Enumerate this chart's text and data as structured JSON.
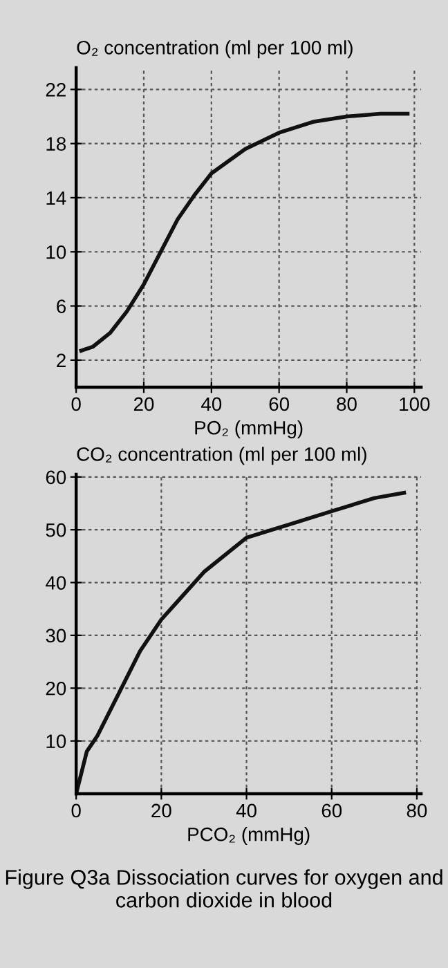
{
  "chart_data": [
    {
      "type": "line",
      "xlabel": "PO₂ (mmHg)",
      "ylabel": "O₂ concentration (ml per 100 ml)",
      "x": [
        1.5,
        5,
        10,
        15,
        20,
        25,
        30,
        35,
        40,
        50,
        60,
        70,
        80,
        90,
        98
      ],
      "series": [
        {
          "color": "#111111",
          "values": [
            2.7,
            3.0,
            4.0,
            5.6,
            7.6,
            10,
            12.4,
            14.2,
            15.8,
            17.6,
            18.8,
            19.6,
            20.0,
            20.2,
            20.2
          ]
        }
      ],
      "xlim": [
        0,
        102
      ],
      "xticks": [
        0,
        20,
        40,
        60,
        80,
        100
      ],
      "ylim": [
        0,
        23.6
      ],
      "yticks": [
        2,
        6,
        10,
        14,
        18,
        22
      ],
      "grid": true,
      "marker": "none",
      "line_style": "solid",
      "annotations": [
        "Figure Q3a Dissociation curves for oxygen and carbon dioxide in blood"
      ]
    },
    {
      "type": "line",
      "xlabel": "PCO₂ (mmHg)",
      "ylabel": "CO₂ concentration (ml per 100 ml)",
      "x": [
        0,
        2.5,
        5,
        10,
        15,
        20,
        30,
        40,
        50,
        60,
        70,
        77
      ],
      "series": [
        {
          "color": "#111111",
          "values": [
            0,
            8,
            11,
            19,
            27,
            33,
            42,
            48.5,
            51,
            53.5,
            56,
            57
          ]
        }
      ],
      "xlim": [
        0,
        81
      ],
      "xticks": [
        0,
        20,
        40,
        60,
        80
      ],
      "ylim": [
        0,
        60.5
      ],
      "yticks": [
        10,
        20,
        30,
        40,
        50,
        60
      ],
      "grid": true,
      "marker": "none",
      "line_style": "solid"
    }
  ]
}
